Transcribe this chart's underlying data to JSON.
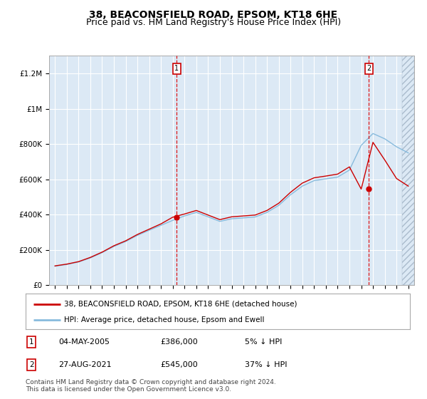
{
  "title": "38, BEACONSFIELD ROAD, EPSOM, KT18 6HE",
  "subtitle": "Price paid vs. HM Land Registry's House Price Index (HPI)",
  "title_fontsize": 10,
  "subtitle_fontsize": 9,
  "bg_color": "#dce9f5",
  "line_red": "#cc0000",
  "line_blue": "#88bbdd",
  "ylim": [
    0,
    1300000
  ],
  "yticks": [
    0,
    200000,
    400000,
    600000,
    800000,
    1000000,
    1200000
  ],
  "ytick_labels": [
    "£0",
    "£200K",
    "£400K",
    "£600K",
    "£800K",
    "£1M",
    "£1.2M"
  ],
  "xlim_start": 1994.5,
  "xlim_end": 2025.5,
  "sale1_year": 2005.34,
  "sale1_price": 386000,
  "sale1_label": "1",
  "sale1_date": "04-MAY-2005",
  "sale1_amount": "£386,000",
  "sale1_hpi": "5% ↓ HPI",
  "sale2_year": 2021.65,
  "sale2_price": 545000,
  "sale2_label": "2",
  "sale2_date": "27-AUG-2021",
  "sale2_amount": "£545,000",
  "sale2_hpi": "37% ↓ HPI",
  "legend_line1": "38, BEACONSFIELD ROAD, EPSOM, KT18 6HE (detached house)",
  "legend_line2": "HPI: Average price, detached house, Epsom and Ewell",
  "footer": "Contains HM Land Registry data © Crown copyright and database right 2024.\nThis data is licensed under the Open Government Licence v3.0.",
  "hpi_years": [
    1995,
    1996,
    1997,
    1998,
    1999,
    2000,
    2001,
    2002,
    2003,
    2004,
    2005,
    2006,
    2007,
    2008,
    2009,
    2010,
    2011,
    2012,
    2013,
    2014,
    2015,
    2016,
    2017,
    2018,
    2019,
    2020,
    2021,
    2022,
    2023,
    2024,
    2025
  ],
  "hpi_values": [
    108000,
    118000,
    132000,
    155000,
    185000,
    220000,
    248000,
    283000,
    312000,
    340000,
    368000,
    393000,
    413000,
    388000,
    362000,
    377000,
    382000,
    387000,
    413000,
    453000,
    513000,
    562000,
    593000,
    603000,
    613000,
    653000,
    793000,
    860000,
    830000,
    785000,
    750000
  ],
  "red_years": [
    1995,
    1996,
    1997,
    1998,
    1999,
    2000,
    2001,
    2002,
    2003,
    2004,
    2005,
    2006,
    2007,
    2008,
    2009,
    2010,
    2011,
    2012,
    2013,
    2014,
    2015,
    2016,
    2017,
    2018,
    2019,
    2020,
    2021,
    2022,
    2023,
    2024,
    2025
  ],
  "red_values": [
    110000,
    120000,
    134000,
    158000,
    188000,
    224000,
    252000,
    288000,
    318000,
    348000,
    386000,
    404000,
    424000,
    398000,
    372000,
    388000,
    393000,
    398000,
    424000,
    465000,
    527000,
    579000,
    609000,
    619000,
    630000,
    671000,
    545000,
    810000,
    710000,
    605000,
    562000
  ],
  "hatch_start": 2024.5,
  "grid_color": "#ffffff",
  "marker_color": "#cc0000"
}
